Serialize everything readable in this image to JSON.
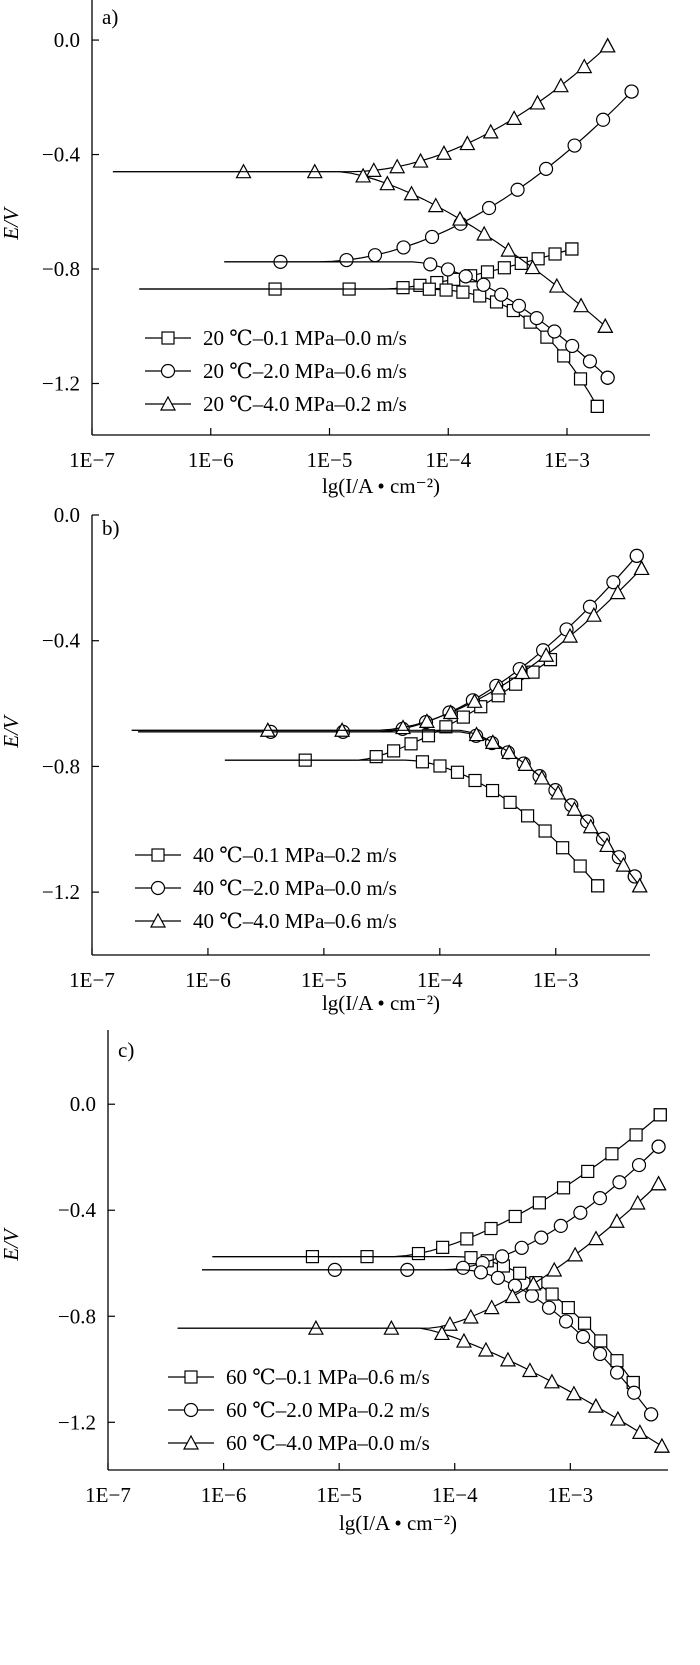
{
  "chart_data": [
    {
      "type": "line",
      "panel_label": "a)",
      "xlabel": "lg(I/A • cm⁻²)",
      "ylabel": "E/V",
      "x_scale": "log",
      "xlim": [
        1e-07,
        0.005
      ],
      "ylim": [
        -1.38,
        0.14
      ],
      "x_tick_labels": [
        "1E−7",
        "1E−6",
        "1E−5",
        "1E−4",
        "1E−3"
      ],
      "x_ticks": [
        1e-07,
        1e-06,
        1e-05,
        0.0001,
        0.001
      ],
      "y_tick_labels": [
        "0.0",
        "−0.4",
        "−0.8",
        "−1.2"
      ],
      "y_ticks": [
        0.0,
        -0.4,
        -0.8,
        -1.2
      ],
      "series": [
        {
          "name": "20 ℃–0.1 MPa–0.0 m/s",
          "marker": "square",
          "branches": [
            {
              "start_i": 2.5e-07,
              "ecorr": -0.87,
              "i_knee": 3e-05,
              "end_i": 0.0011,
              "end_e": -0.73,
              "exp": 1.4
            },
            {
              "start_i": 2.5e-07,
              "ecorr": -0.87,
              "i_knee": 5e-05,
              "end_i": 0.0018,
              "end_e": -1.28,
              "exp": 2.8
            }
          ]
        },
        {
          "name": "20 ℃–2.0 MPa–0.6 m/s",
          "marker": "circle",
          "branches": [
            {
              "start_i": 1.3e-06,
              "ecorr": -0.775,
              "i_knee": 8e-06,
              "end_i": 0.0035,
              "end_e": -0.18,
              "exp": 1.9
            },
            {
              "start_i": 1.3e-06,
              "ecorr": -0.775,
              "i_knee": 5e-05,
              "end_i": 0.0022,
              "end_e": -1.18,
              "exp": 1.6
            }
          ]
        },
        {
          "name": "20 ℃–4.0 MPa–0.2 m/s",
          "marker": "triangle",
          "branches": [
            {
              "start_i": 1.5e-07,
              "ecorr": -0.46,
              "i_knee": 1.5e-05,
              "end_i": 0.0022,
              "end_e": -0.02,
              "exp": 1.9
            },
            {
              "start_i": 1.5e-07,
              "ecorr": -0.46,
              "i_knee": 1.2e-05,
              "end_i": 0.0021,
              "end_e": -1.0,
              "exp": 1.5
            }
          ]
        }
      ]
    },
    {
      "type": "line",
      "panel_label": "b)",
      "xlabel": "lg(I/A • cm⁻²)",
      "ylabel": "E/V",
      "x_scale": "log",
      "xlim": [
        1e-07,
        0.0065
      ],
      "ylim": [
        -1.4,
        0.0
      ],
      "x_tick_labels": [
        "1E−7",
        "1E−6",
        "1E−5",
        "1E−4",
        "1E−3"
      ],
      "x_ticks": [
        1e-07,
        1e-06,
        1e-05,
        0.0001,
        0.001
      ],
      "y_tick_labels": [
        "0.0",
        "−0.4",
        "−0.8",
        "−1.2"
      ],
      "y_ticks": [
        0.0,
        -0.4,
        -0.8,
        -1.2
      ],
      "series": [
        {
          "name": "40 ℃–0.1 MPa–0.2 m/s",
          "marker": "square",
          "branches": [
            {
              "start_i": 1.4e-06,
              "ecorr": -0.78,
              "i_knee": 2e-05,
              "end_i": 0.0009,
              "end_e": -0.46,
              "exp": 1.4
            },
            {
              "start_i": 1.4e-06,
              "ecorr": -0.78,
              "i_knee": 5e-05,
              "end_i": 0.0023,
              "end_e": -1.18,
              "exp": 1.8
            }
          ]
        },
        {
          "name": "40 ℃–2.0 MPa–0.0 m/s",
          "marker": "circle",
          "branches": [
            {
              "start_i": 2.5e-07,
              "ecorr": -0.69,
              "i_knee": 3e-05,
              "end_i": 0.005,
              "end_e": -0.13,
              "exp": 1.7
            },
            {
              "start_i": 2.5e-07,
              "ecorr": -0.69,
              "i_knee": 0.00015,
              "end_i": 0.0048,
              "end_e": -1.15,
              "exp": 1.5
            }
          ]
        },
        {
          "name": "40 ℃–4.0 MPa–0.6 m/s",
          "marker": "triangle",
          "branches": [
            {
              "start_i": 2.2e-07,
              "ecorr": -0.685,
              "i_knee": 3e-05,
              "end_i": 0.0055,
              "end_e": -0.17,
              "exp": 1.7
            },
            {
              "start_i": 2.2e-07,
              "ecorr": -0.685,
              "i_knee": 0.00015,
              "end_i": 0.0053,
              "end_e": -1.18,
              "exp": 1.5
            }
          ]
        }
      ]
    },
    {
      "type": "line",
      "panel_label": "c)",
      "xlabel": "lg(I/A • cm⁻²)",
      "ylabel": "E/V",
      "x_scale": "log",
      "xlim": [
        1e-07,
        0.007
      ],
      "ylim": [
        -1.38,
        0.28
      ],
      "x_tick_labels": [
        "1E−7",
        "1E−6",
        "1E−5",
        "1E−4",
        "1E−3"
      ],
      "x_ticks": [
        1e-07,
        1e-06,
        1e-05,
        0.0001,
        0.001
      ],
      "y_tick_labels": [
        "0.0",
        "−0.4",
        "−0.8",
        "−1.2"
      ],
      "y_ticks": [
        0.0,
        -0.4,
        -0.8,
        -1.2
      ],
      "series": [
        {
          "name": "60 ℃–0.1 MPa–0.6 m/s",
          "marker": "square",
          "branches": [
            {
              "start_i": 8e-07,
              "ecorr": -0.575,
              "i_knee": 3e-05,
              "end_i": 0.006,
              "end_e": -0.04,
              "exp": 1.6
            },
            {
              "start_i": 8e-07,
              "ecorr": -0.575,
              "i_knee": 0.0001,
              "end_i": 0.0035,
              "end_e": -1.05,
              "exp": 2.0
            }
          ]
        },
        {
          "name": "60 ℃–2.0 MPa–0.2 m/s",
          "marker": "circle",
          "branches": [
            {
              "start_i": 6.5e-07,
              "ecorr": -0.625,
              "i_knee": 8e-05,
              "end_i": 0.0058,
              "end_e": -0.16,
              "exp": 1.7
            },
            {
              "start_i": 6.5e-07,
              "ecorr": -0.625,
              "i_knee": 0.00012,
              "end_i": 0.005,
              "end_e": -1.17,
              "exp": 1.7
            }
          ]
        },
        {
          "name": "60 ℃–4.0 MPa–0.0 m/s",
          "marker": "triangle",
          "branches": [
            {
              "start_i": 4e-07,
              "ecorr": -0.845,
              "i_knee": 6e-05,
              "end_i": 0.0058,
              "end_e": -0.3,
              "exp": 1.5
            },
            {
              "start_i": 4e-07,
              "ecorr": -0.845,
              "i_knee": 5e-05,
              "end_i": 0.0062,
              "end_e": -1.29,
              "exp": 1.3
            }
          ]
        }
      ]
    }
  ]
}
